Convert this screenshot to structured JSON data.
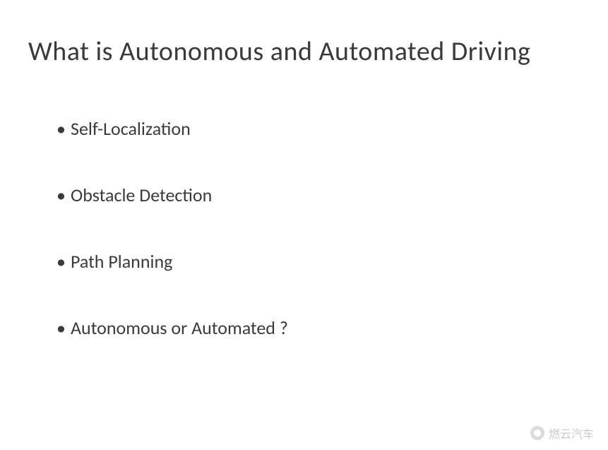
{
  "slide": {
    "title": "What is Autonomous and Automated Driving",
    "title_fontsize": 38,
    "title_color": "#3a3a3a",
    "bullets": [
      "Self-Localization",
      "Obstacle Detection",
      "Path Planning",
      "Autonomous or Automated ?"
    ],
    "bullet_fontsize": 26,
    "bullet_color": "#3a3a3a",
    "bullet_marker": "•",
    "bullet_spacing": 62,
    "background_color": "#ffffff",
    "font_family": "Calibri"
  },
  "watermark": {
    "icon_name": "wechat-icon",
    "text": "燃云汽车",
    "text_color": "#888888",
    "opacity": 0.45
  }
}
